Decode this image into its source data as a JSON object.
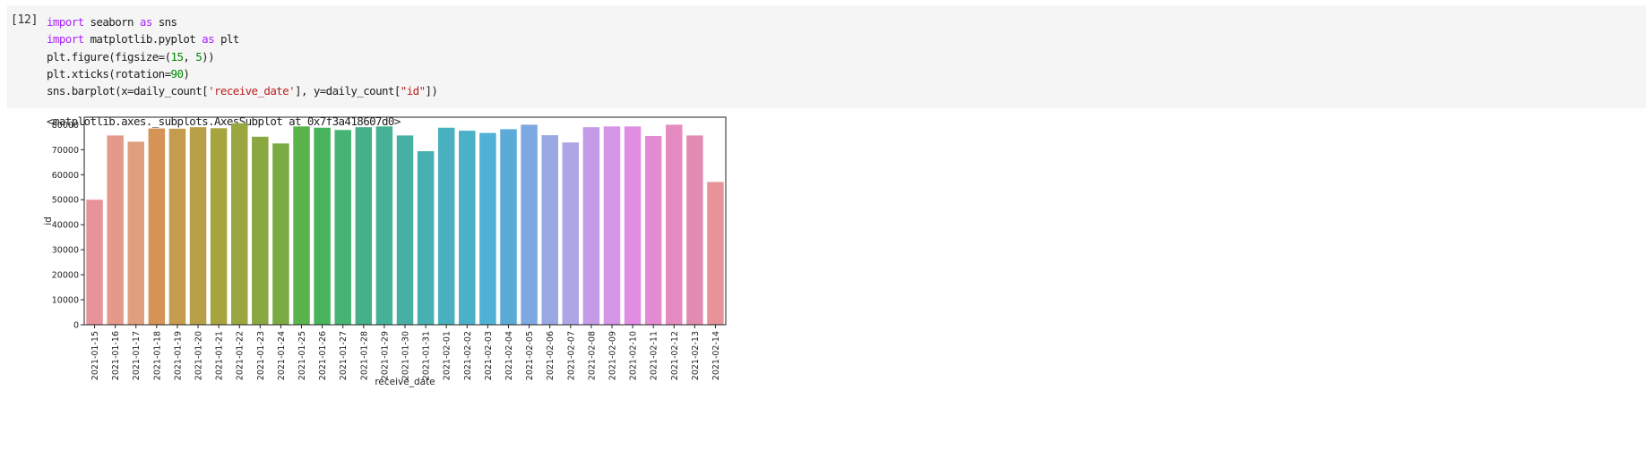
{
  "cell": {
    "prompt": "[12]",
    "lines": [
      [
        {
          "t": "import",
          "c": "kw"
        },
        {
          "t": " seaborn "
        },
        {
          "t": "as",
          "c": "kw"
        },
        {
          "t": " sns"
        }
      ],
      [
        {
          "t": "import",
          "c": "kw"
        },
        {
          "t": " matplotlib.pyplot "
        },
        {
          "t": "as",
          "c": "kw"
        },
        {
          "t": " plt"
        }
      ],
      [
        {
          "t": "plt.figure(figsize=("
        },
        {
          "t": "15",
          "c": "num"
        },
        {
          "t": ", "
        },
        {
          "t": "5",
          "c": "num"
        },
        {
          "t": "))"
        }
      ],
      [
        {
          "t": "plt.xticks(rotation="
        },
        {
          "t": "90",
          "c": "num"
        },
        {
          "t": ")"
        }
      ],
      [
        {
          "t": "sns.barplot(x=daily_count["
        },
        {
          "t": "'receive_date'",
          "c": "str"
        },
        {
          "t": "], y=daily_count["
        },
        {
          "t": "\"id\"",
          "c": "str"
        },
        {
          "t": "])"
        }
      ]
    ]
  },
  "output": {
    "text": "<matplotlib.axes._subplots.AxesSubplot at 0x7f3a418607d0>"
  },
  "chart_data": {
    "type": "bar",
    "xlabel": "receive_date",
    "ylabel": "id",
    "ylim": [
      0,
      83000
    ],
    "yticks": [
      0,
      10000,
      20000,
      30000,
      40000,
      50000,
      60000,
      70000,
      80000
    ],
    "categories": [
      "2021-01-15",
      "2021-01-16",
      "2021-01-17",
      "2021-01-18",
      "2021-01-19",
      "2021-01-20",
      "2021-01-21",
      "2021-01-22",
      "2021-01-23",
      "2021-01-24",
      "2021-01-25",
      "2021-01-26",
      "2021-01-27",
      "2021-01-28",
      "2021-01-29",
      "2021-01-30",
      "2021-01-31",
      "2021-02-01",
      "2021-02-02",
      "2021-02-03",
      "2021-02-04",
      "2021-02-05",
      "2021-02-06",
      "2021-02-07",
      "2021-02-08",
      "2021-02-09",
      "2021-02-10",
      "2021-02-11",
      "2021-02-12",
      "2021-02-13",
      "2021-02-14"
    ],
    "values": [
      50000,
      75700,
      73200,
      78500,
      78400,
      79000,
      78600,
      80600,
      75200,
      72500,
      79300,
      78800,
      77900,
      79000,
      79300,
      75700,
      69400,
      78800,
      77600,
      76700,
      78200,
      80000,
      75800,
      72900,
      79000,
      79300,
      79300,
      75500,
      80000,
      75700,
      57100
    ],
    "colors": [
      "#e8939a",
      "#e59a89",
      "#e09f7f",
      "#d69356",
      "#c59b4e",
      "#b7a048",
      "#a7a33f",
      "#9aa640",
      "#8aa842",
      "#7aab43",
      "#5bb34c",
      "#47b45c",
      "#47b475",
      "#46b189",
      "#45b298",
      "#46b0a5",
      "#47afb0",
      "#48b0be",
      "#4ab1c8",
      "#4fb1d4",
      "#5aabd6",
      "#7ea8e2",
      "#99a7e3",
      "#aca5e6",
      "#c49be7",
      "#d696e7",
      "#e08de3",
      "#e48cd3",
      "#e58bc2",
      "#e28bb0",
      "#e8939a"
    ]
  }
}
